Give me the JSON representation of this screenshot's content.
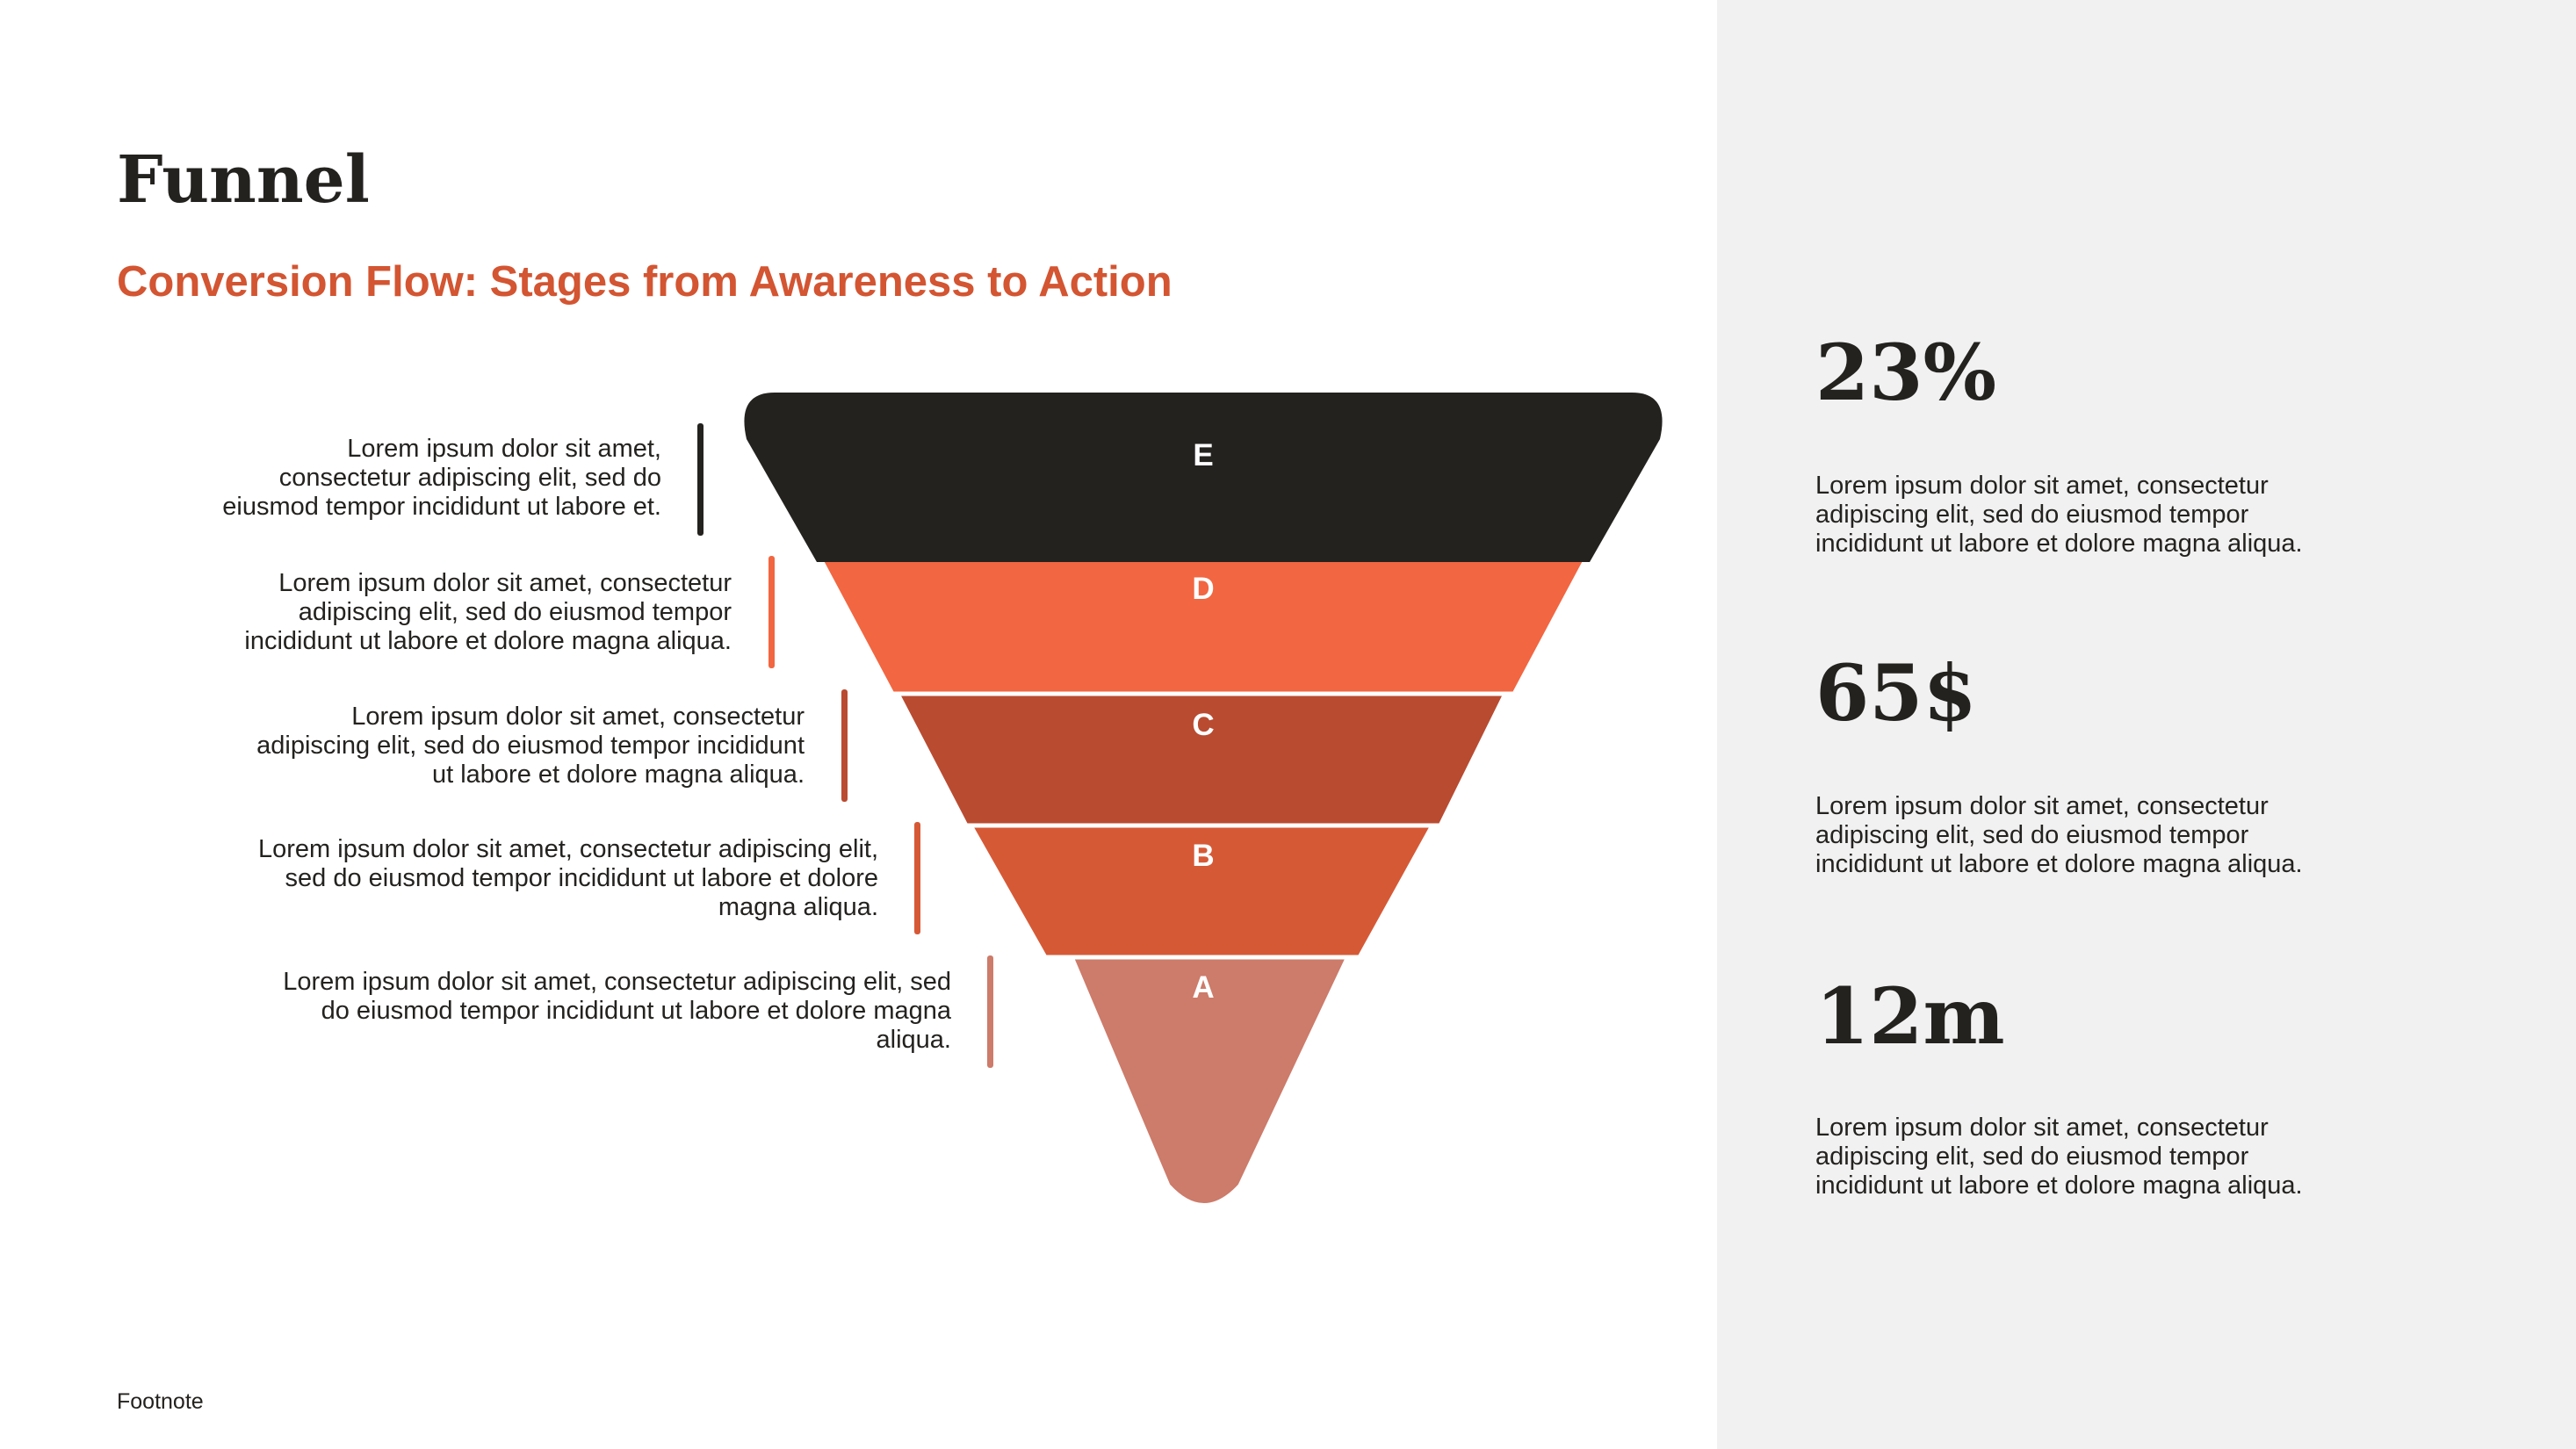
{
  "header": {
    "title": "Funnel",
    "subtitle": "Conversion Flow: Stages from Awareness to Action"
  },
  "colors": {
    "accent": "#d35532",
    "dark": "#24221f",
    "panel": "#f1f1f1",
    "stage_e": "#24221f",
    "stage_d": "#f26641",
    "stage_c": "#b94b31",
    "stage_b": "#d65936",
    "stage_a": "#cd7b6a"
  },
  "funnel": {
    "stages": [
      {
        "label": "E",
        "color": "#24221f"
      },
      {
        "label": "D",
        "color": "#f26641"
      },
      {
        "label": "C",
        "color": "#b94b31"
      },
      {
        "label": "B",
        "color": "#d65936"
      },
      {
        "label": "A",
        "color": "#cd7b6a"
      }
    ]
  },
  "descriptions": [
    {
      "lines": [
        "Lorem ipsum dolor sit amet,",
        "consectetur adipiscing elit, sed do",
        "eiusmod tempor incididunt ut labore et."
      ],
      "color": "#24221f"
    },
    {
      "lines": [
        "Lorem ipsum dolor sit amet, consectetur",
        "adipiscing elit, sed do eiusmod tempor",
        "incididunt ut labore et dolore magna aliqua."
      ],
      "color": "#f26641"
    },
    {
      "lines": [
        "Lorem ipsum dolor sit amet, consectetur",
        "adipiscing elit, sed do eiusmod tempor incididunt",
        "ut labore et dolore magna aliqua."
      ],
      "color": "#b94b31"
    },
    {
      "lines": [
        "Lorem ipsum dolor sit amet, consectetur adipiscing elit,",
        "sed do eiusmod tempor incididunt ut labore et dolore",
        "magna aliqua."
      ],
      "color": "#d65936"
    },
    {
      "lines": [
        "Lorem ipsum dolor sit amet, consectetur adipiscing elit, sed",
        "do eiusmod tempor incididunt ut labore et dolore magna",
        "aliqua."
      ],
      "color": "#cd7b6a"
    }
  ],
  "stats": [
    {
      "value": "23%",
      "lines": [
        "Lorem ipsum dolor sit amet, consectetur",
        "adipiscing elit, sed do eiusmod tempor",
        "incididunt ut labore et dolore magna aliqua."
      ]
    },
    {
      "value": "65$",
      "lines": [
        "Lorem ipsum dolor sit amet, consectetur",
        "adipiscing elit, sed do eiusmod tempor",
        "incididunt ut labore et dolore magna aliqua."
      ]
    },
    {
      "value": "12m",
      "lines": [
        "Lorem ipsum dolor sit amet, consectetur",
        "adipiscing elit, sed do eiusmod tempor",
        "incididunt ut labore et dolore magna aliqua."
      ]
    }
  ],
  "footnote": "Footnote"
}
